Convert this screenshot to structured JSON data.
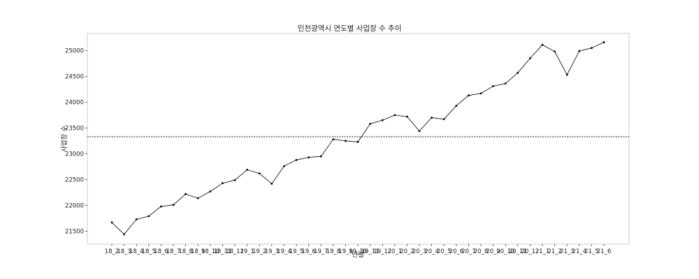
{
  "chart_data": {
    "type": "line",
    "title": "인천광역시 연도별 사업장 수 추이",
    "xlabel": "년월",
    "ylabel": "사업장 수",
    "categories": [
      "18_2",
      "18_3",
      "18_4",
      "18_5",
      "18_6",
      "18_7",
      "18_8",
      "18_9",
      "18_10",
      "18_11",
      "18_12",
      "19_1",
      "19_2",
      "19_3",
      "19_4",
      "19_5",
      "19_6",
      "19_7",
      "19_8",
      "19_9",
      "19_10",
      "19_11",
      "19_12",
      "20_1",
      "20_2",
      "20_3",
      "20_4",
      "20_5",
      "20_6",
      "20_7",
      "20_8",
      "20_9",
      "20_10",
      "20_11",
      "20_12",
      "21_1",
      "21_2",
      "21_3",
      "21_4",
      "21_5",
      "21_6"
    ],
    "values": [
      21670,
      21440,
      21730,
      21790,
      21980,
      22010,
      22220,
      22140,
      22270,
      22430,
      22490,
      22690,
      22620,
      22420,
      22760,
      22880,
      22930,
      22950,
      23280,
      23250,
      23230,
      23580,
      23650,
      23750,
      23720,
      23440,
      23700,
      23670,
      23930,
      24130,
      24170,
      24310,
      24360,
      24570,
      24850,
      25110,
      24980,
      24530,
      24990,
      25050,
      25160
    ],
    "yticks": [
      21500,
      22000,
      22500,
      23000,
      23500,
      24000,
      24500,
      25000
    ],
    "ylim": [
      21250,
      25330
    ],
    "reference_line": 23330,
    "grid": false,
    "line_color": "#000000",
    "reference_color": "#000000"
  }
}
